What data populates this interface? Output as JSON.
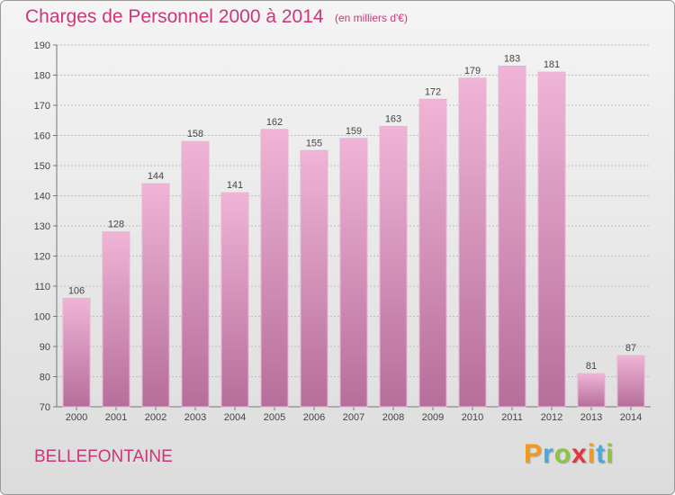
{
  "title": "Charges de Personnel 2000 à 2014",
  "subtitle": "(en milliers d'€)",
  "commune": "BELLEFONTAINE",
  "logo": {
    "letters": [
      "P",
      "r",
      "o",
      "x",
      "i",
      "t",
      "i"
    ],
    "colors": [
      "#f29a1e",
      "#4aa8dc",
      "#8cc63f",
      "#e8323c",
      "#f29a1e",
      "#4aa8dc",
      "#8cc63f"
    ]
  },
  "colors": {
    "text_accent": "#c8387a",
    "bar_top": "#f0b4d6",
    "bar_bottom": "#b66e9a",
    "grid": "#bdbdbd"
  },
  "chart_data": {
    "type": "bar",
    "categories": [
      "2000",
      "2001",
      "2002",
      "2003",
      "2004",
      "2005",
      "2006",
      "2007",
      "2008",
      "2009",
      "2010",
      "2011",
      "2012",
      "2013",
      "2014"
    ],
    "values": [
      106,
      128,
      144,
      158,
      141,
      162,
      155,
      159,
      163,
      172,
      179,
      183,
      181,
      81,
      87
    ],
    "title": "Charges de Personnel 2000 à 2014",
    "ylim": [
      70,
      190
    ],
    "yticks": [
      70,
      80,
      90,
      100,
      110,
      120,
      130,
      140,
      150,
      160,
      170,
      180,
      190
    ],
    "grid": true,
    "legend": "none"
  }
}
